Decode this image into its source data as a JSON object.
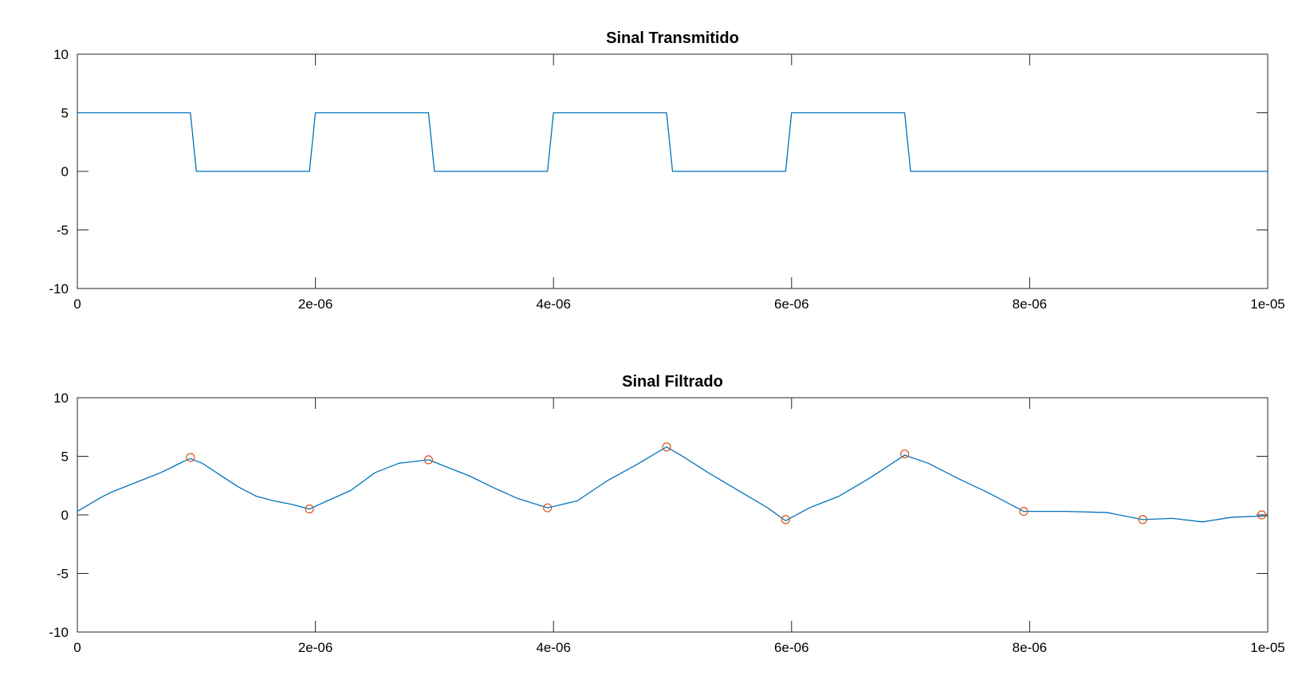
{
  "chart_data": [
    {
      "type": "line",
      "title": "Sinal Transmitido",
      "xlabel": "",
      "ylabel": "",
      "xlim": [
        0,
        1e-05
      ],
      "ylim": [
        -10,
        10
      ],
      "grid": false,
      "x_ticks": [
        0,
        2e-06,
        4e-06,
        6e-06,
        8e-06,
        1e-05
      ],
      "x_tick_labels": [
        "0",
        "2e-06",
        "4e-06",
        "6e-06",
        "8e-06",
        "1e-05"
      ],
      "y_ticks": [
        -10,
        -5,
        0,
        5,
        10
      ],
      "y_tick_labels": [
        "-10",
        "-5",
        "0",
        "5",
        "10"
      ],
      "series": [
        {
          "color": "#0072BD",
          "style": "line",
          "x": [
            0,
            9.5e-07,
            1e-06,
            1.95e-06,
            2e-06,
            2.95e-06,
            3e-06,
            3.95e-06,
            4e-06,
            4.95e-06,
            5e-06,
            5.95e-06,
            6e-06,
            6.95e-06,
            7e-06,
            1e-05
          ],
          "y": [
            5,
            5,
            0,
            0,
            5,
            5,
            0,
            0,
            5,
            5,
            0,
            0,
            5,
            5,
            0,
            0
          ]
        }
      ]
    },
    {
      "type": "line",
      "title": "Sinal Filtrado",
      "xlabel": "",
      "ylabel": "",
      "xlim": [
        0,
        1e-05
      ],
      "ylim": [
        -10,
        10
      ],
      "grid": false,
      "x_ticks": [
        0,
        2e-06,
        4e-06,
        6e-06,
        8e-06,
        1e-05
      ],
      "x_tick_labels": [
        "0",
        "2e-06",
        "4e-06",
        "6e-06",
        "8e-06",
        "1e-05"
      ],
      "y_ticks": [
        -10,
        -5,
        0,
        5,
        10
      ],
      "y_tick_labels": [
        "-10",
        "-5",
        "0",
        "5",
        "10"
      ],
      "series": [
        {
          "color": "#0072BD",
          "style": "line",
          "x": [
            0,
            1e-07,
            2e-07,
            3e-07,
            4e-07,
            5e-07,
            6e-07,
            7e-07,
            8e-07,
            9e-07,
            9.5e-07,
            1.05e-06,
            1.2e-06,
            1.35e-06,
            1.5e-06,
            1.65e-06,
            1.8e-06,
            1.95e-06,
            2.1e-06,
            2.3e-06,
            2.5e-06,
            2.7e-06,
            2.95e-06,
            3.1e-06,
            3.3e-06,
            3.5e-06,
            3.7e-06,
            3.95e-06,
            4.2e-06,
            4.45e-06,
            4.7e-06,
            4.95e-06,
            5.1e-06,
            5.3e-06,
            5.55e-06,
            5.8e-06,
            5.95e-06,
            6.15e-06,
            6.4e-06,
            6.65e-06,
            6.95e-06,
            7.15e-06,
            7.4e-06,
            7.65e-06,
            7.95e-06,
            8.3e-06,
            8.65e-06,
            8.95e-06,
            9.2e-06,
            9.45e-06,
            9.7e-06,
            9.95e-06,
            1e-05
          ],
          "y": [
            0.3,
            0.9,
            1.5,
            2.0,
            2.4,
            2.8,
            3.2,
            3.6,
            4.1,
            4.6,
            4.8,
            4.4,
            3.4,
            2.4,
            1.6,
            1.2,
            0.9,
            0.5,
            1.2,
            2.1,
            3.6,
            4.4,
            4.7,
            4.1,
            3.3,
            2.3,
            1.4,
            0.6,
            1.2,
            2.9,
            4.3,
            5.8,
            4.9,
            3.6,
            2.1,
            0.6,
            -0.5,
            0.6,
            1.6,
            3.1,
            5.1,
            4.4,
            3.1,
            1.9,
            0.3,
            0.3,
            0.2,
            -0.4,
            -0.3,
            -0.6,
            -0.2,
            -0.1,
            -0.1
          ]
        },
        {
          "color": "#D95319",
          "style": "markers",
          "marker": "circle",
          "x": [
            9.5e-07,
            1.95e-06,
            2.95e-06,
            3.95e-06,
            4.95e-06,
            5.95e-06,
            6.95e-06,
            7.95e-06,
            8.95e-06,
            9.95e-06
          ],
          "y": [
            4.9,
            0.5,
            4.7,
            0.6,
            5.8,
            -0.4,
            5.2,
            0.3,
            -0.4,
            0.0
          ]
        }
      ]
    }
  ]
}
